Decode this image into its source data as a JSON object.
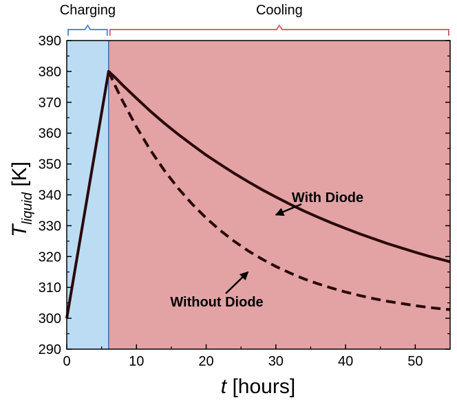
{
  "chart_data": {
    "type": "line",
    "xlabel": {
      "main": "t",
      "rest": " [hours]"
    },
    "ylabel": {
      "main": "T",
      "sub": "liquid",
      "rest": " [K]"
    },
    "xlim": [
      0,
      55
    ],
    "ylim": [
      290,
      390
    ],
    "xticks": [
      0,
      10,
      20,
      30,
      40,
      50
    ],
    "yticks": [
      290,
      300,
      310,
      320,
      330,
      340,
      350,
      360,
      370,
      380,
      390
    ],
    "grid": false,
    "regions": [
      {
        "label": "Charging",
        "x": [
          0,
          6
        ],
        "color": "#bcdcf3",
        "bracket_color": "#4a90d9"
      },
      {
        "label": "Cooling",
        "x": [
          6,
          55
        ],
        "color": "#e3a3a5",
        "bracket_color": "#d9626a"
      }
    ],
    "series": [
      {
        "name": "With Diode",
        "style": "solid",
        "color": "#2a0a0a",
        "x": [
          0,
          6,
          7,
          8,
          10,
          12,
          14,
          16,
          18,
          20,
          22,
          24,
          26,
          28,
          30,
          32,
          34,
          36,
          38,
          40,
          42,
          44,
          46,
          48,
          50,
          52,
          54,
          55
        ],
        "y": [
          300,
          380,
          377.9,
          375.6,
          371.3,
          367.1,
          363.2,
          359.6,
          356.2,
          352.9,
          349.9,
          347.0,
          344.3,
          341.7,
          339.3,
          337.0,
          334.8,
          332.8,
          330.9,
          329.1,
          327.4,
          325.8,
          324.2,
          322.8,
          321.4,
          320.1,
          318.9,
          318.3
        ]
      },
      {
        "name": "Without Diode",
        "style": "dashed",
        "color": "#2a0a0a",
        "x": [
          6,
          7,
          8,
          10,
          12,
          14,
          16,
          18,
          20,
          22,
          24,
          26,
          28,
          30,
          32,
          34,
          36,
          38,
          40,
          42,
          44,
          46,
          48,
          50,
          52,
          54,
          55
        ],
        "y": [
          380,
          375.1,
          370.5,
          362.0,
          354.5,
          347.9,
          342.1,
          337.0,
          332.5,
          328.5,
          325.0,
          321.9,
          319.2,
          316.8,
          314.7,
          312.8,
          311.2,
          309.8,
          308.5,
          307.4,
          306.4,
          305.5,
          304.8,
          304.1,
          303.5,
          303.0,
          302.8
        ]
      }
    ],
    "annotations": [
      {
        "text": "With Diode",
        "arrow_to": [
          30,
          333.5
        ]
      },
      {
        "text": "Without Diode",
        "arrow_to": [
          26,
          315
        ]
      }
    ]
  }
}
